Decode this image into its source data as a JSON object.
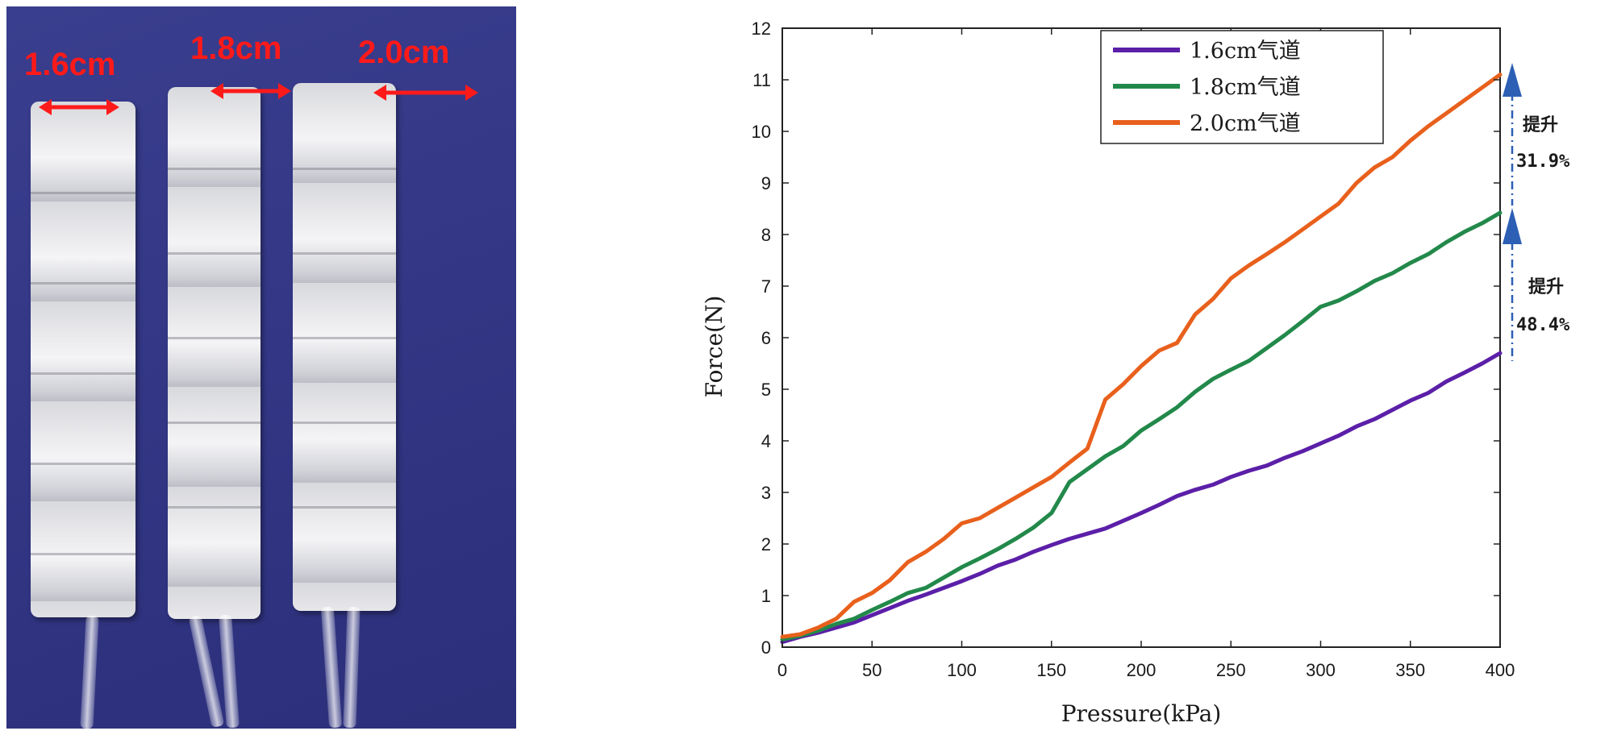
{
  "photo": {
    "labels": [
      "1.6cm",
      "1.8cm",
      "2.0cm"
    ],
    "label_color": "#ff1a1a",
    "background_color": "#34388a"
  },
  "chart_data": {
    "type": "line",
    "title": "",
    "xlabel": "Pressure(kPa)",
    "ylabel": "Force(N)",
    "xlim": [
      0,
      400
    ],
    "ylim": [
      0,
      12
    ],
    "xticks": [
      0,
      50,
      100,
      150,
      200,
      250,
      300,
      350,
      400
    ],
    "yticks": [
      0,
      1,
      2,
      3,
      4,
      5,
      6,
      7,
      8,
      9,
      10,
      11,
      12
    ],
    "grid": false,
    "legend_position": "top-right",
    "series": [
      {
        "name": "1.6cm气道",
        "color": "#5b1fa8",
        "x": [
          0,
          10,
          20,
          30,
          40,
          50,
          60,
          70,
          80,
          90,
          100,
          110,
          120,
          130,
          140,
          150,
          160,
          170,
          180,
          190,
          200,
          210,
          220,
          230,
          240,
          250,
          260,
          270,
          280,
          290,
          300,
          310,
          320,
          330,
          340,
          350,
          360,
          370,
          380,
          390,
          400
        ],
        "y": [
          0.1,
          0.2,
          0.28,
          0.38,
          0.48,
          0.62,
          0.76,
          0.9,
          1.02,
          1.15,
          1.28,
          1.42,
          1.58,
          1.7,
          1.85,
          1.98,
          2.1,
          2.2,
          2.3,
          2.45,
          2.6,
          2.76,
          2.93,
          3.05,
          3.15,
          3.3,
          3.42,
          3.52,
          3.67,
          3.8,
          3.95,
          4.1,
          4.28,
          4.42,
          4.6,
          4.78,
          4.93,
          5.15,
          5.32,
          5.5,
          5.7
        ]
      },
      {
        "name": "1.8cm气道",
        "color": "#22894a",
        "x": [
          0,
          10,
          20,
          30,
          40,
          50,
          60,
          70,
          80,
          90,
          100,
          110,
          120,
          130,
          140,
          150,
          160,
          170,
          180,
          190,
          200,
          210,
          220,
          230,
          240,
          250,
          260,
          270,
          280,
          290,
          300,
          310,
          320,
          330,
          340,
          350,
          360,
          370,
          380,
          390,
          400
        ],
        "y": [
          0.15,
          0.22,
          0.32,
          0.45,
          0.55,
          0.72,
          0.88,
          1.05,
          1.15,
          1.35,
          1.55,
          1.72,
          1.9,
          2.1,
          2.32,
          2.6,
          3.2,
          3.45,
          3.7,
          3.9,
          4.2,
          4.42,
          4.65,
          4.95,
          5.2,
          5.38,
          5.55,
          5.8,
          6.05,
          6.32,
          6.6,
          6.72,
          6.9,
          7.1,
          7.25,
          7.45,
          7.62,
          7.85,
          8.05,
          8.22,
          8.42
        ]
      },
      {
        "name": "2.0cm气道",
        "color": "#e8601c",
        "x": [
          0,
          10,
          20,
          30,
          40,
          50,
          60,
          70,
          80,
          90,
          100,
          110,
          120,
          130,
          140,
          150,
          160,
          170,
          180,
          190,
          200,
          210,
          220,
          230,
          240,
          250,
          260,
          270,
          280,
          290,
          300,
          310,
          320,
          330,
          340,
          350,
          360,
          370,
          380,
          390,
          400
        ],
        "y": [
          0.2,
          0.25,
          0.38,
          0.55,
          0.88,
          1.05,
          1.3,
          1.65,
          1.85,
          2.1,
          2.4,
          2.5,
          2.7,
          2.9,
          3.1,
          3.3,
          3.58,
          3.85,
          4.8,
          5.1,
          5.45,
          5.75,
          5.9,
          6.45,
          6.75,
          7.15,
          7.4,
          7.62,
          7.85,
          8.1,
          8.35,
          8.6,
          9.0,
          9.3,
          9.5,
          9.82,
          10.1,
          10.35,
          10.6,
          10.85,
          11.1
        ]
      }
    ],
    "annotations": [
      {
        "line1": "提升",
        "line2": "31.9%"
      },
      {
        "line1": "提升",
        "line2": "48.4%"
      }
    ],
    "annotation_color": "#2d5fb5"
  }
}
